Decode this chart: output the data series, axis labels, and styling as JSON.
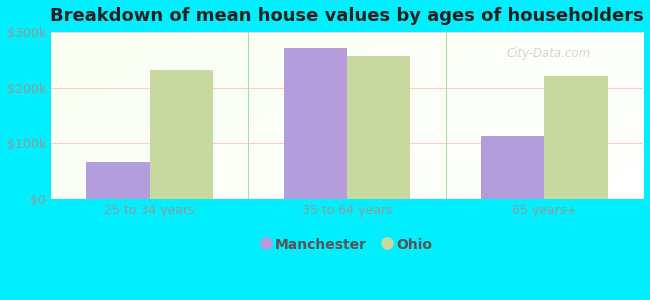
{
  "title": "Breakdown of mean house values by ages of householders",
  "categories": [
    "25 to 34 years",
    "35 to 64 years",
    "65 years+"
  ],
  "manchester_values": [
    67000,
    271000,
    113000
  ],
  "ohio_values": [
    232000,
    257000,
    221000
  ],
  "manchester_color": "#b39ddb",
  "ohio_color": "#c8d9a0",
  "ylim": [
    0,
    300000
  ],
  "yticks": [
    0,
    100000,
    200000,
    300000
  ],
  "ytick_labels": [
    "$0",
    "$100k",
    "$200k",
    "$300k"
  ],
  "bar_width": 0.32,
  "outer_bg": "#00eeff",
  "legend_labels": [
    "Manchester",
    "Ohio"
  ],
  "title_fontsize": 13,
  "tick_fontsize": 9,
  "legend_fontsize": 10,
  "watermark": "City-Data.com"
}
